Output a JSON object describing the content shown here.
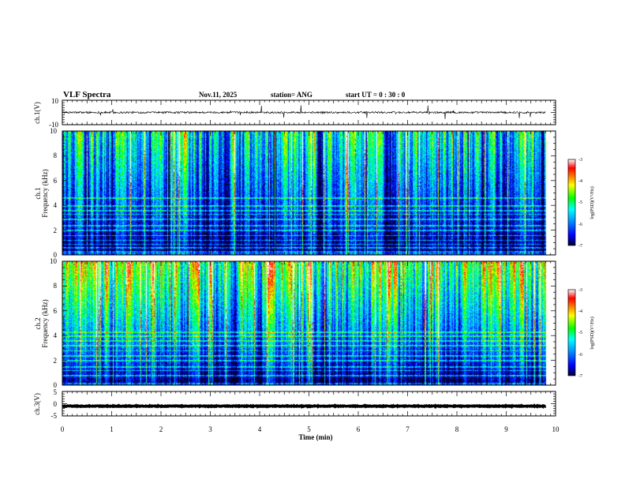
{
  "header": {
    "title": "VLF Spectra",
    "date": "Nov.11, 2025",
    "station": "station= ANG",
    "start": "start  UT =   0  : 30 : 0"
  },
  "colors": {
    "background": "#ffffff",
    "axis": "#000000",
    "colormap": [
      "#000033",
      "#0000ff",
      "#00a0ff",
      "#00ffff",
      "#00ff00",
      "#ffff00",
      "#ff8000",
      "#ff0000",
      "#ffffff"
    ]
  },
  "chart_data": [
    {
      "type": "line",
      "name": "ch1-waveform",
      "ylabel": "ch.1(V)",
      "ylim": [
        -10,
        10
      ],
      "yticks": [
        "10",
        "-10"
      ],
      "xlim": [
        0,
        10
      ],
      "series": [
        {
          "name": "ch.1",
          "baseline": 0,
          "noise": 0.8,
          "duration_min": 9.8
        }
      ]
    },
    {
      "type": "heatmap",
      "name": "ch1-spectrogram",
      "ylabel": [
        "ch.1",
        "Frequency (kHz)"
      ],
      "ylim": [
        0,
        10
      ],
      "yticks": [
        "10",
        "8",
        "6",
        "4",
        "2",
        "0"
      ],
      "xlim": [
        0,
        10
      ],
      "duration_min": 9.8,
      "narrowband_khz": [
        0.3,
        0.6,
        0.9,
        1.2,
        1.6,
        2.0,
        2.4,
        2.9,
        3.3,
        3.6,
        4.0,
        4.6
      ],
      "colorbar": {
        "label": "log(PSD)(V²/Hz)",
        "range": [
          -7,
          -3
        ],
        "ticks": [
          "-3",
          "-4",
          "-5",
          "-6",
          "-7"
        ]
      }
    },
    {
      "type": "heatmap",
      "name": "ch2-spectrogram",
      "ylabel": [
        "ch.2",
        "Frequency (kHz)"
      ],
      "ylim": [
        0,
        10
      ],
      "yticks": [
        "10",
        "8",
        "6",
        "4",
        "2",
        "0"
      ],
      "xlim": [
        0,
        10
      ],
      "duration_min": 9.8,
      "narrowband_khz": [
        0.8,
        1.2,
        1.5,
        2.0,
        2.4,
        2.8,
        3.2,
        3.6,
        4.0,
        4.3
      ],
      "colorbar": {
        "label": "log(PSD)(V²/Hz)",
        "range": [
          -7,
          -3
        ],
        "ticks": [
          "-3",
          "-4",
          "-5",
          "-6",
          "-7"
        ]
      }
    },
    {
      "type": "line",
      "name": "ch3-waveform",
      "ylabel": "ch.3(V)",
      "ylim": [
        -5,
        5
      ],
      "yticks": [
        "5",
        "0",
        "-5"
      ],
      "xlim": [
        0,
        10
      ],
      "xlabel": "Time (min)",
      "xticks": [
        "0",
        "1",
        "2",
        "3",
        "4",
        "5",
        "6",
        "7",
        "8",
        "9",
        "10"
      ],
      "series": [
        {
          "name": "ch.3",
          "baseline": -1.0,
          "noise": 0.15,
          "duration_min": 9.8
        }
      ]
    }
  ]
}
